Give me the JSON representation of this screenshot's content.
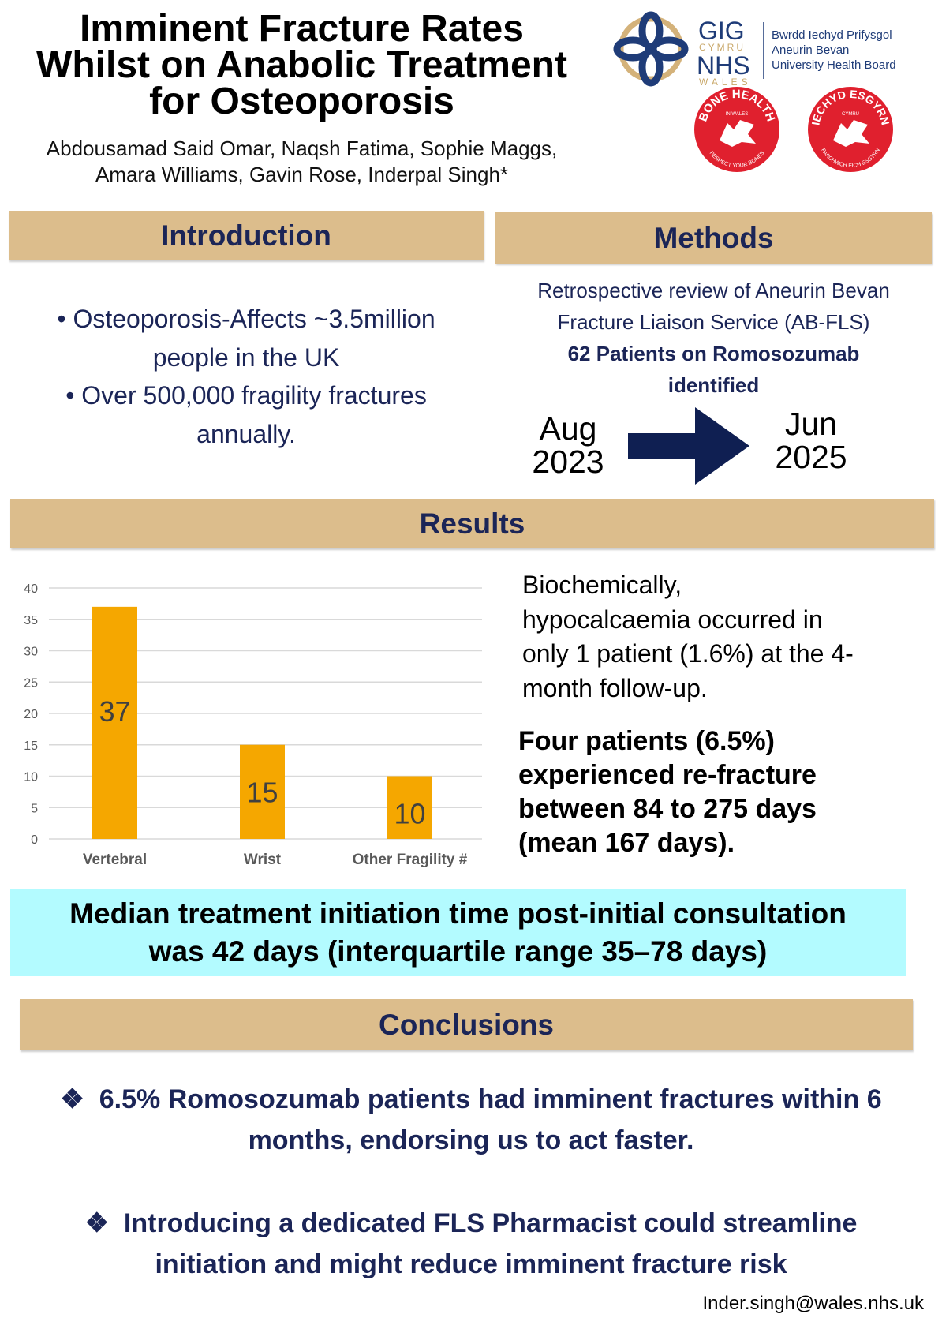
{
  "title": [
    "Imminent Fracture Rates",
    "Whilst on Anabolic Treatment",
    "for Osteoporosis"
  ],
  "authors": [
    "Abdousamad Said Omar, Naqsh Fatima, Sophie Maggs,",
    "Amara Williams, Gavin Rose, Inderpal Singh*"
  ],
  "logos": {
    "nhs": {
      "gig": "GIG",
      "cymru": "CYMRU",
      "nhs": "NHS",
      "wales": "WALES",
      "board": [
        "Bwrdd Iechyd Prifysgol",
        "Aneurin Bevan",
        "University Health Board"
      ]
    },
    "bone_health": {
      "top": "BONE HEALTH",
      "mid": "IN WALES",
      "bottom": "RESPECT YOUR BONES"
    },
    "iechyd": {
      "top": "IECHYD ESGYRN",
      "mid": "CYMRU",
      "bottom": "PARCHWCH EICH ESGYRN"
    }
  },
  "introduction": {
    "heading": "Introduction",
    "lines": [
      "• Osteoporosis-Affects ~3.5million",
      "people in the UK",
      "• Over 500,000 fragility fractures",
      "annually."
    ]
  },
  "methods": {
    "heading": "Methods",
    "lines": [
      "Retrospective review of Aneurin Bevan",
      "Fracture Liaison Service (AB-FLS)"
    ],
    "bold_lines": [
      "62 Patients on Romosozumab",
      "identified"
    ],
    "start": [
      "Aug",
      "2023"
    ],
    "end": [
      "Jun",
      "2025"
    ],
    "arrow_icon": "arrow-right"
  },
  "results": {
    "heading": "Results",
    "text": [
      "Biochemically,",
      "hypocalcaemia occurred in",
      "only 1 patient (1.6%) at the 4-",
      "month follow-up."
    ],
    "bold_text": [
      "Four patients (6.5%)",
      "experienced re-fracture",
      "between 84 to 275 days",
      "(mean 167 days)."
    ]
  },
  "chart_data": {
    "type": "bar",
    "categories": [
      "Vertebral",
      "Wrist",
      "Other Fragility #"
    ],
    "values": [
      37,
      15,
      10
    ],
    "data_labels": [
      "37",
      "15",
      "10"
    ],
    "ylim": [
      0,
      40
    ],
    "yticks": [
      "0",
      "5",
      "10",
      "15",
      "20",
      "25",
      "30",
      "35",
      "40"
    ],
    "grid": true,
    "bar_color": "#f5a700"
  },
  "highlight": {
    "lines": [
      "Median treatment initiation time post-initial consultation",
      "was 42 days (interquartile range 35–78 days)"
    ],
    "color": "#b3fbff"
  },
  "conclusions": {
    "heading": "Conclusions",
    "bullet_icon": "four-diamond-bullet",
    "items": [
      {
        "lines": [
          "6.5% Romosozumab patients had imminent fractures within 6",
          "months, endorsing us to act faster."
        ]
      },
      {
        "lines": [
          "Introducing a dedicated FLS Pharmacist could streamline",
          "initiation and might reduce imminent fracture risk"
        ]
      }
    ]
  },
  "email": "Inder.singh@wales.nhs.uk",
  "colors": {
    "header_bg": "#dcbd8c",
    "navy": "#1b2557",
    "bar": "#f5a700"
  }
}
